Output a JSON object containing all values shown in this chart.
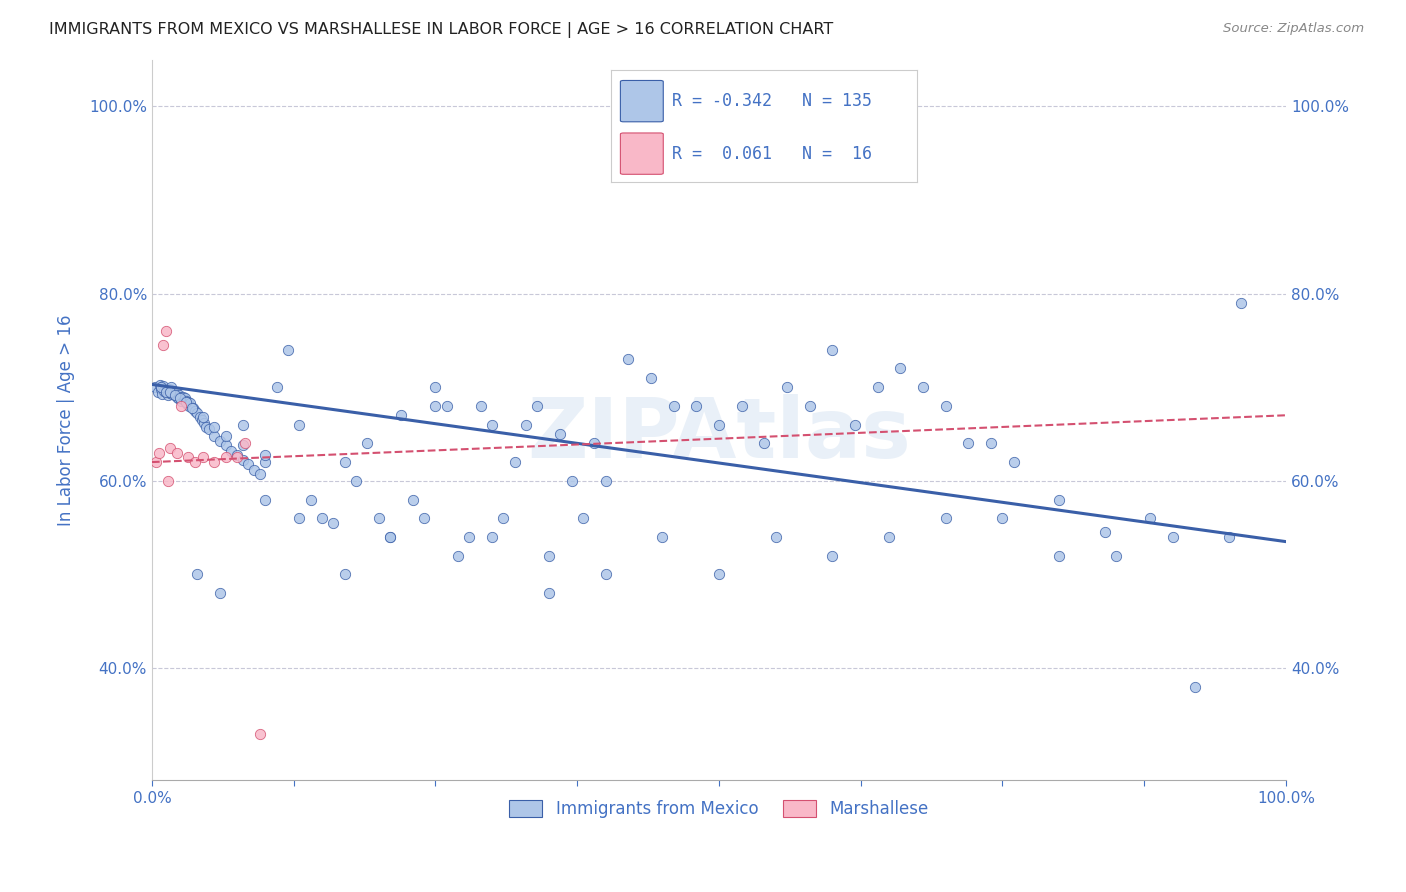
{
  "title": "IMMIGRANTS FROM MEXICO VS MARSHALLESE IN LABOR FORCE | AGE > 16 CORRELATION CHART",
  "source": "Source: ZipAtlas.com",
  "ylabel": "In Labor Force | Age > 16",
  "legend_label1": "Immigrants from Mexico",
  "legend_label2": "Marshallese",
  "r1": -0.342,
  "n1": 135,
  "r2": 0.061,
  "n2": 16,
  "color1": "#aec6e8",
  "color2": "#f9b8c8",
  "line_color1": "#3a5fa8",
  "line_color2": "#d45070",
  "text_color": "#4472c4",
  "watermark": "ZIPAtlas",
  "xlim": [
    0.0,
    1.0
  ],
  "ylim": [
    0.28,
    1.05
  ],
  "x_ticks": [
    0.0,
    0.125,
    0.25,
    0.375,
    0.5,
    0.625,
    0.75,
    0.875,
    1.0
  ],
  "y_ticks": [
    0.4,
    0.6,
    0.8,
    1.0
  ],
  "y_tick_labels": [
    "40.0%",
    "60.0%",
    "80.0%",
    "100.0%"
  ],
  "mexico_x": [
    0.003,
    0.005,
    0.007,
    0.008,
    0.009,
    0.01,
    0.011,
    0.012,
    0.013,
    0.014,
    0.015,
    0.016,
    0.017,
    0.018,
    0.019,
    0.02,
    0.021,
    0.022,
    0.023,
    0.024,
    0.025,
    0.026,
    0.027,
    0.028,
    0.029,
    0.03,
    0.031,
    0.032,
    0.033,
    0.034,
    0.036,
    0.038,
    0.04,
    0.042,
    0.044,
    0.046,
    0.048,
    0.05,
    0.055,
    0.06,
    0.065,
    0.07,
    0.075,
    0.08,
    0.085,
    0.09,
    0.095,
    0.1,
    0.11,
    0.12,
    0.13,
    0.14,
    0.15,
    0.16,
    0.17,
    0.18,
    0.19,
    0.2,
    0.21,
    0.22,
    0.23,
    0.24,
    0.25,
    0.26,
    0.27,
    0.28,
    0.29,
    0.3,
    0.31,
    0.32,
    0.33,
    0.34,
    0.35,
    0.36,
    0.37,
    0.38,
    0.39,
    0.4,
    0.42,
    0.44,
    0.46,
    0.48,
    0.5,
    0.52,
    0.54,
    0.56,
    0.58,
    0.6,
    0.62,
    0.64,
    0.66,
    0.68,
    0.7,
    0.72,
    0.74,
    0.76,
    0.8,
    0.84,
    0.88,
    0.92,
    0.96,
    0.008,
    0.012,
    0.016,
    0.02,
    0.025,
    0.03,
    0.035,
    0.045,
    0.055,
    0.065,
    0.08,
    0.1,
    0.13,
    0.17,
    0.21,
    0.25,
    0.3,
    0.35,
    0.4,
    0.45,
    0.5,
    0.55,
    0.6,
    0.65,
    0.7,
    0.75,
    0.8,
    0.85,
    0.9,
    0.95,
    0.04,
    0.06,
    0.08,
    0.1
  ],
  "mexico_y": [
    0.7,
    0.695,
    0.702,
    0.698,
    0.693,
    0.701,
    0.696,
    0.695,
    0.697,
    0.692,
    0.698,
    0.694,
    0.7,
    0.693,
    0.696,
    0.692,
    0.695,
    0.69,
    0.688,
    0.692,
    0.689,
    0.685,
    0.69,
    0.686,
    0.688,
    0.685,
    0.682,
    0.684,
    0.68,
    0.683,
    0.678,
    0.675,
    0.672,
    0.668,
    0.665,
    0.662,
    0.658,
    0.655,
    0.648,
    0.642,
    0.638,
    0.632,
    0.628,
    0.622,
    0.618,
    0.612,
    0.607,
    0.62,
    0.7,
    0.74,
    0.66,
    0.58,
    0.56,
    0.555,
    0.62,
    0.6,
    0.64,
    0.56,
    0.54,
    0.67,
    0.58,
    0.56,
    0.7,
    0.68,
    0.52,
    0.54,
    0.68,
    0.66,
    0.56,
    0.62,
    0.66,
    0.68,
    0.52,
    0.65,
    0.6,
    0.56,
    0.64,
    0.6,
    0.73,
    0.71,
    0.68,
    0.68,
    0.66,
    0.68,
    0.64,
    0.7,
    0.68,
    0.74,
    0.66,
    0.7,
    0.72,
    0.7,
    0.68,
    0.64,
    0.64,
    0.62,
    0.58,
    0.545,
    0.56,
    0.38,
    0.79,
    0.7,
    0.695,
    0.695,
    0.692,
    0.688,
    0.684,
    0.678,
    0.668,
    0.658,
    0.648,
    0.638,
    0.628,
    0.56,
    0.5,
    0.54,
    0.68,
    0.54,
    0.48,
    0.5,
    0.54,
    0.5,
    0.54,
    0.52,
    0.54,
    0.56,
    0.56,
    0.52,
    0.52,
    0.54,
    0.54,
    0.5,
    0.48,
    0.66,
    0.58
  ],
  "marshall_x": [
    0.004,
    0.006,
    0.01,
    0.012,
    0.014,
    0.016,
    0.022,
    0.026,
    0.032,
    0.038,
    0.045,
    0.055,
    0.065,
    0.075,
    0.082,
    0.095
  ],
  "marshall_y": [
    0.62,
    0.63,
    0.745,
    0.76,
    0.6,
    0.635,
    0.63,
    0.68,
    0.625,
    0.62,
    0.625,
    0.62,
    0.625,
    0.625,
    0.64,
    0.33
  ],
  "blue_line_x": [
    0.0,
    1.0
  ],
  "blue_line_y": [
    0.703,
    0.535
  ],
  "pink_line_x": [
    0.0,
    1.0
  ],
  "pink_line_y": [
    0.62,
    0.67
  ]
}
